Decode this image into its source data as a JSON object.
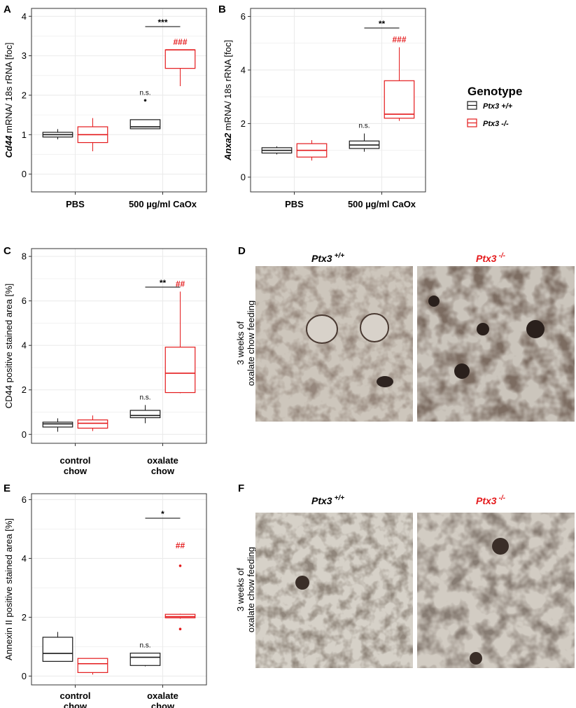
{
  "colors": {
    "wt": "#1a1a1a",
    "ko": "#e41a1c",
    "grid": "#ebebeb",
    "panel_border": "#333333",
    "tissue_light": "#cfc8bf",
    "tissue_dark": "#3a2c26"
  },
  "legend": {
    "title": "Genotype",
    "items": [
      {
        "label": "Ptx3 +/+",
        "color": "#1a1a1a"
      },
      {
        "label": "Ptx3 -/-",
        "color": "#e41a1c"
      }
    ]
  },
  "chart_data": [
    {
      "panel": "A",
      "type": "box",
      "ylabel_italic": "Cd44",
      "ylabel_rest": " mRNA/ 18s rRNA [foc]",
      "ylim": [
        -0.45,
        4.2
      ],
      "yticks": [
        0,
        1,
        2,
        3,
        4
      ],
      "categories": [
        {
          "line1": "PBS",
          "line2": ""
        },
        {
          "line1": "500 µg/ml CaOx",
          "line2": ""
        }
      ],
      "series": [
        {
          "name": "Ptx3 +/+",
          "boxes": [
            {
              "min": 0.88,
              "q1": 0.94,
              "median": 1.0,
              "q3": 1.06,
              "max": 1.14,
              "outliers": []
            },
            {
              "min": 1.14,
              "q1": 1.15,
              "median": 1.2,
              "q3": 1.38,
              "max": 1.38,
              "outliers": [
                1.87
              ]
            }
          ]
        },
        {
          "name": "Ptx3 -/-",
          "boxes": [
            {
              "min": 0.58,
              "q1": 0.8,
              "median": 1.0,
              "q3": 1.2,
              "max": 1.42,
              "outliers": []
            },
            {
              "min": 2.23,
              "q1": 2.68,
              "median": 3.15,
              "q3": 3.15,
              "max": 3.15,
              "outliers": []
            }
          ]
        }
      ],
      "annotations": {
        "ns": "n.s.",
        "sig": "***",
        "hash": "###"
      }
    },
    {
      "panel": "B",
      "type": "box",
      "ylabel_italic": "Anxa2",
      "ylabel_rest": " mRNA/ 18s rRNA [foc]",
      "ylim": [
        -0.55,
        6.3
      ],
      "yticks": [
        0,
        2,
        4,
        6
      ],
      "categories": [
        {
          "line1": "PBS",
          "line2": ""
        },
        {
          "line1": "500 µg/ml CaOx",
          "line2": ""
        }
      ],
      "series": [
        {
          "name": "Ptx3 +/+",
          "boxes": [
            {
              "min": 0.85,
              "q1": 0.9,
              "median": 1.0,
              "q3": 1.1,
              "max": 1.15,
              "outliers": []
            },
            {
              "min": 0.95,
              "q1": 1.07,
              "median": 1.2,
              "q3": 1.35,
              "max": 1.63,
              "outliers": []
            }
          ]
        },
        {
          "name": "Ptx3 -/-",
          "boxes": [
            {
              "min": 0.62,
              "q1": 0.75,
              "median": 1.0,
              "q3": 1.25,
              "max": 1.38,
              "outliers": []
            },
            {
              "min": 2.1,
              "q1": 2.2,
              "median": 2.35,
              "q3": 3.6,
              "max": 4.85,
              "outliers": []
            }
          ]
        }
      ],
      "annotations": {
        "ns": "n.s.",
        "sig": "**",
        "hash": "###"
      }
    },
    {
      "panel": "C",
      "type": "box",
      "ylabel_italic": "",
      "ylabel_rest": "CD44 positive stained area [%]",
      "ylim": [
        -0.4,
        8.35
      ],
      "yticks": [
        0,
        2,
        4,
        6,
        8
      ],
      "categories": [
        {
          "line1": "control",
          "line2": "chow"
        },
        {
          "line1": "oxalate",
          "line2": "chow"
        }
      ],
      "series": [
        {
          "name": "Ptx3 +/+",
          "boxes": [
            {
              "min": 0.12,
              "q1": 0.33,
              "median": 0.47,
              "q3": 0.55,
              "max": 0.72,
              "outliers": []
            },
            {
              "min": 0.5,
              "q1": 0.75,
              "median": 0.85,
              "q3": 1.08,
              "max": 1.32,
              "outliers": []
            }
          ]
        },
        {
          "name": "Ptx3 -/-",
          "boxes": [
            {
              "min": 0.15,
              "q1": 0.28,
              "median": 0.5,
              "q3": 0.65,
              "max": 0.85,
              "outliers": []
            },
            {
              "min": 1.85,
              "q1": 1.88,
              "median": 2.75,
              "q3": 3.92,
              "max": 6.42,
              "outliers": []
            }
          ]
        }
      ],
      "annotations": {
        "ns": "n.s.",
        "sig": "**",
        "hash": "##"
      }
    },
    {
      "panel": "E",
      "type": "box",
      "ylabel_italic": "",
      "ylabel_rest": "Annexin II positive stained area [%]",
      "ylim": [
        -0.3,
        6.2
      ],
      "yticks": [
        0,
        2,
        4,
        6
      ],
      "categories": [
        {
          "line1": "control",
          "line2": "chow"
        },
        {
          "line1": "oxalate",
          "line2": "chow"
        }
      ],
      "series": [
        {
          "name": "Ptx3 +/+",
          "boxes": [
            {
              "min": 0.5,
              "q1": 0.5,
              "median": 0.77,
              "q3": 1.32,
              "max": 1.5,
              "outliers": []
            },
            {
              "min": 0.33,
              "q1": 0.36,
              "median": 0.64,
              "q3": 0.78,
              "max": 0.78,
              "outliers": []
            }
          ]
        },
        {
          "name": "Ptx3 -/-",
          "boxes": [
            {
              "min": 0.05,
              "q1": 0.12,
              "median": 0.42,
              "q3": 0.6,
              "max": 0.6,
              "outliers": []
            },
            {
              "min": 1.95,
              "q1": 1.98,
              "median": 2.02,
              "q3": 2.1,
              "max": 2.12,
              "outliers": [
                1.6,
                3.75
              ]
            }
          ]
        }
      ],
      "annotations": {
        "ns": "n.s.",
        "sig": "*",
        "hash": "##"
      }
    }
  ],
  "image_panels": [
    {
      "panel": "D",
      "title_left": "Ptx3",
      "sup_left": "+/+",
      "title_right": "Ptx3",
      "sup_right": "-/-",
      "side_line1": "3 weeks of",
      "side_line2": "oxalate chow feeding"
    },
    {
      "panel": "F",
      "title_left": "Ptx3",
      "sup_left": "+/+",
      "title_right": "Ptx3",
      "sup_right": "-/-",
      "side_line1": "3 weeks of",
      "side_line2": "oxalate chow feeding"
    }
  ]
}
